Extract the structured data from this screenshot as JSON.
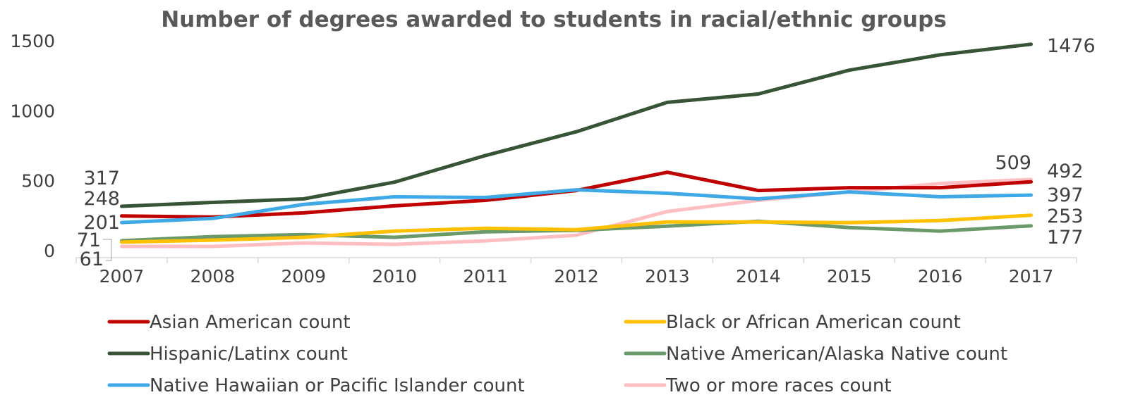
{
  "chart_data": {
    "type": "line",
    "title": "Number of degrees awarded to students in racial/ethnic groups",
    "xlabel": "",
    "ylabel": "",
    "ylim": [
      0,
      1500
    ],
    "yticks": [
      "0",
      "500",
      "1000",
      "1500"
    ],
    "categories": [
      "2007",
      "2008",
      "2009",
      "2010",
      "2011",
      "2012",
      "2013",
      "2014",
      "2015",
      "2016",
      "2017"
    ],
    "grid": false,
    "legend_position": "bottom",
    "series": [
      {
        "name": "Asian American count",
        "color": "#C00000",
        "values": [
          248,
          240,
          270,
          320,
          360,
          430,
          560,
          430,
          450,
          450,
          492
        ]
      },
      {
        "name": "Black or African American count",
        "color": "#FFC000",
        "values": [
          61,
          75,
          95,
          140,
          160,
          150,
          205,
          205,
          200,
          215,
          253
        ]
      },
      {
        "name": "Hispanic/Latinx count",
        "color": "#375437",
        "values": [
          317,
          345,
          370,
          490,
          680,
          850,
          1060,
          1120,
          1290,
          1400,
          1476
        ]
      },
      {
        "name": "Native American/Alaska Native count",
        "color": "#6A9A6A",
        "values": [
          71,
          100,
          115,
          95,
          135,
          145,
          175,
          210,
          165,
          140,
          177
        ]
      },
      {
        "name": "Native Hawaiian or Pacific Islander count",
        "color": "#3FA9E8",
        "values": [
          201,
          230,
          330,
          385,
          380,
          435,
          410,
          370,
          420,
          385,
          397
        ]
      },
      {
        "name": "Two or more races count",
        "color": "#FFBFC2",
        "values": [
          30,
          30,
          55,
          45,
          70,
          110,
          280,
          360,
          420,
          480,
          509
        ]
      }
    ],
    "data_labels": {
      "first": [
        "248",
        "61",
        "317",
        "71",
        "201",
        ""
      ],
      "last": [
        "492",
        "253",
        "1476",
        "177",
        "397",
        "509"
      ]
    }
  }
}
